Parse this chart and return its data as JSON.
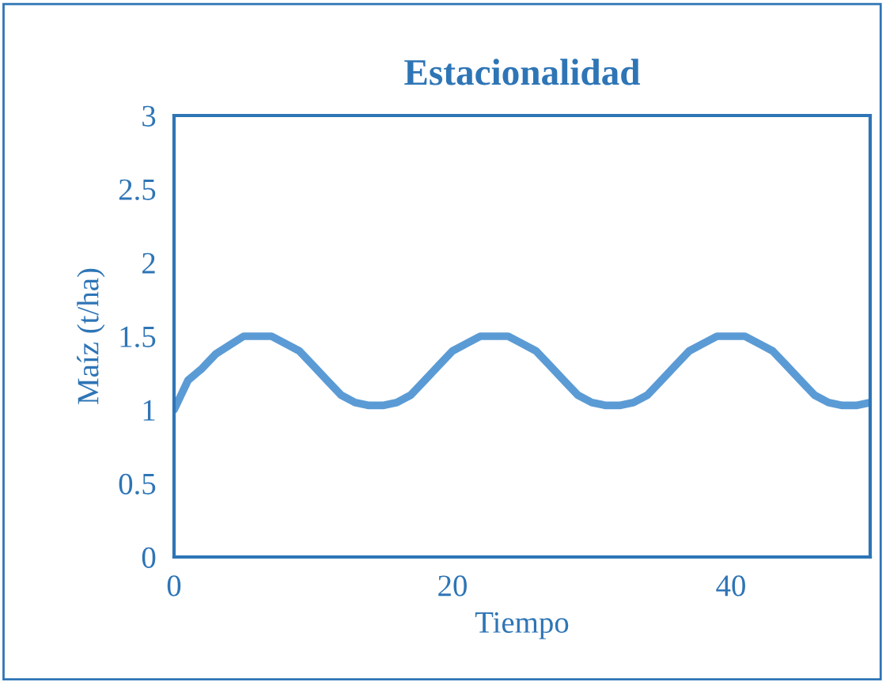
{
  "chart_data": {
    "type": "line",
    "title": "Estacionalidad",
    "xlabel": "Tiempo",
    "ylabel": "Maíz (t/ha)",
    "x": [
      0,
      1,
      2,
      3,
      4,
      5,
      6,
      7,
      8,
      9,
      10,
      11,
      12,
      13,
      14,
      15,
      16,
      17,
      18,
      19,
      20,
      21,
      22,
      23,
      24,
      25,
      26,
      27,
      28,
      29,
      30,
      31,
      32,
      33,
      34,
      35,
      36,
      37,
      38,
      39,
      40,
      41,
      42,
      43,
      44,
      45,
      46,
      47,
      48,
      49,
      50
    ],
    "series": [
      {
        "color": "#5b9bd5",
        "values": [
          1.0,
          1.2,
          1.28,
          1.38,
          1.44,
          1.5,
          1.5,
          1.5,
          1.45,
          1.4,
          1.3,
          1.2,
          1.1,
          1.05,
          1.03,
          1.03,
          1.05,
          1.1,
          1.2,
          1.3,
          1.4,
          1.45,
          1.5,
          1.5,
          1.5,
          1.45,
          1.4,
          1.3,
          1.2,
          1.1,
          1.05,
          1.03,
          1.03,
          1.05,
          1.1,
          1.2,
          1.3,
          1.4,
          1.45,
          1.5,
          1.5,
          1.5,
          1.45,
          1.4,
          1.3,
          1.2,
          1.1,
          1.05,
          1.03,
          1.03,
          1.05
        ]
      }
    ],
    "xlim": [
      0,
      50
    ],
    "xticks": [
      0,
      20,
      40
    ],
    "ylim": [
      0,
      3
    ],
    "yticks": [
      0,
      0.5,
      1,
      1.5,
      2,
      2.5,
      3
    ],
    "grid": false,
    "legend": false,
    "marker": "none",
    "line_style": "solid"
  }
}
